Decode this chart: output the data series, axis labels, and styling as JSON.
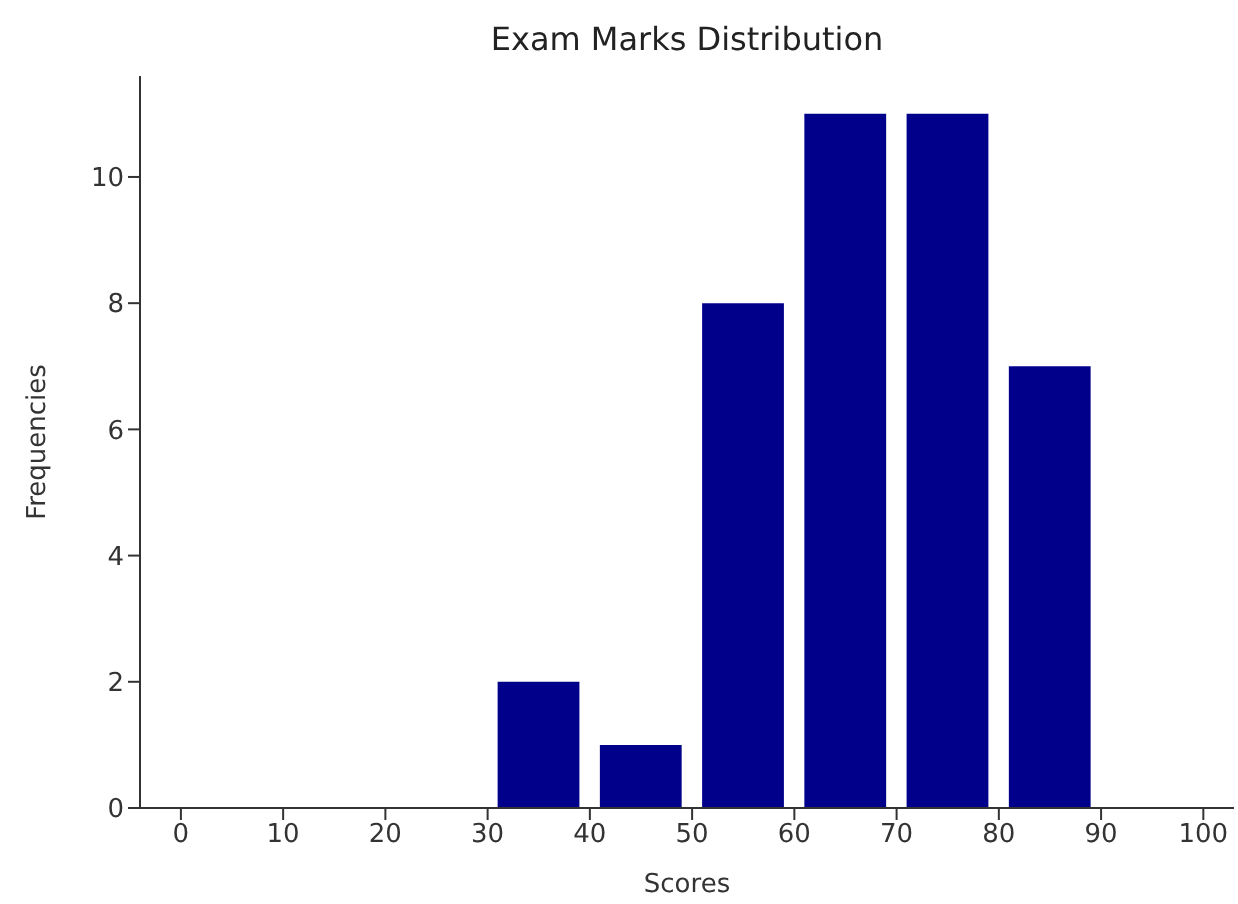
{
  "chart_data": {
    "type": "histogram",
    "title": "Exam Marks Distribution",
    "xlabel": "Scores",
    "ylabel": "Frequencies",
    "bins": [
      0,
      10,
      20,
      30,
      40,
      50,
      60,
      70,
      80,
      90,
      100
    ],
    "values": [
      0,
      0,
      0,
      2,
      1,
      8,
      11,
      11,
      7,
      0
    ],
    "color": "#00008b",
    "xlim": [
      -4,
      103
    ],
    "xticks": [
      0,
      10,
      20,
      30,
      40,
      50,
      60,
      70,
      80,
      90,
      100
    ],
    "ylim": [
      0,
      11.6
    ],
    "yticks": [
      0,
      2,
      4,
      6,
      8,
      10
    ],
    "grid": false,
    "legend": false
  }
}
